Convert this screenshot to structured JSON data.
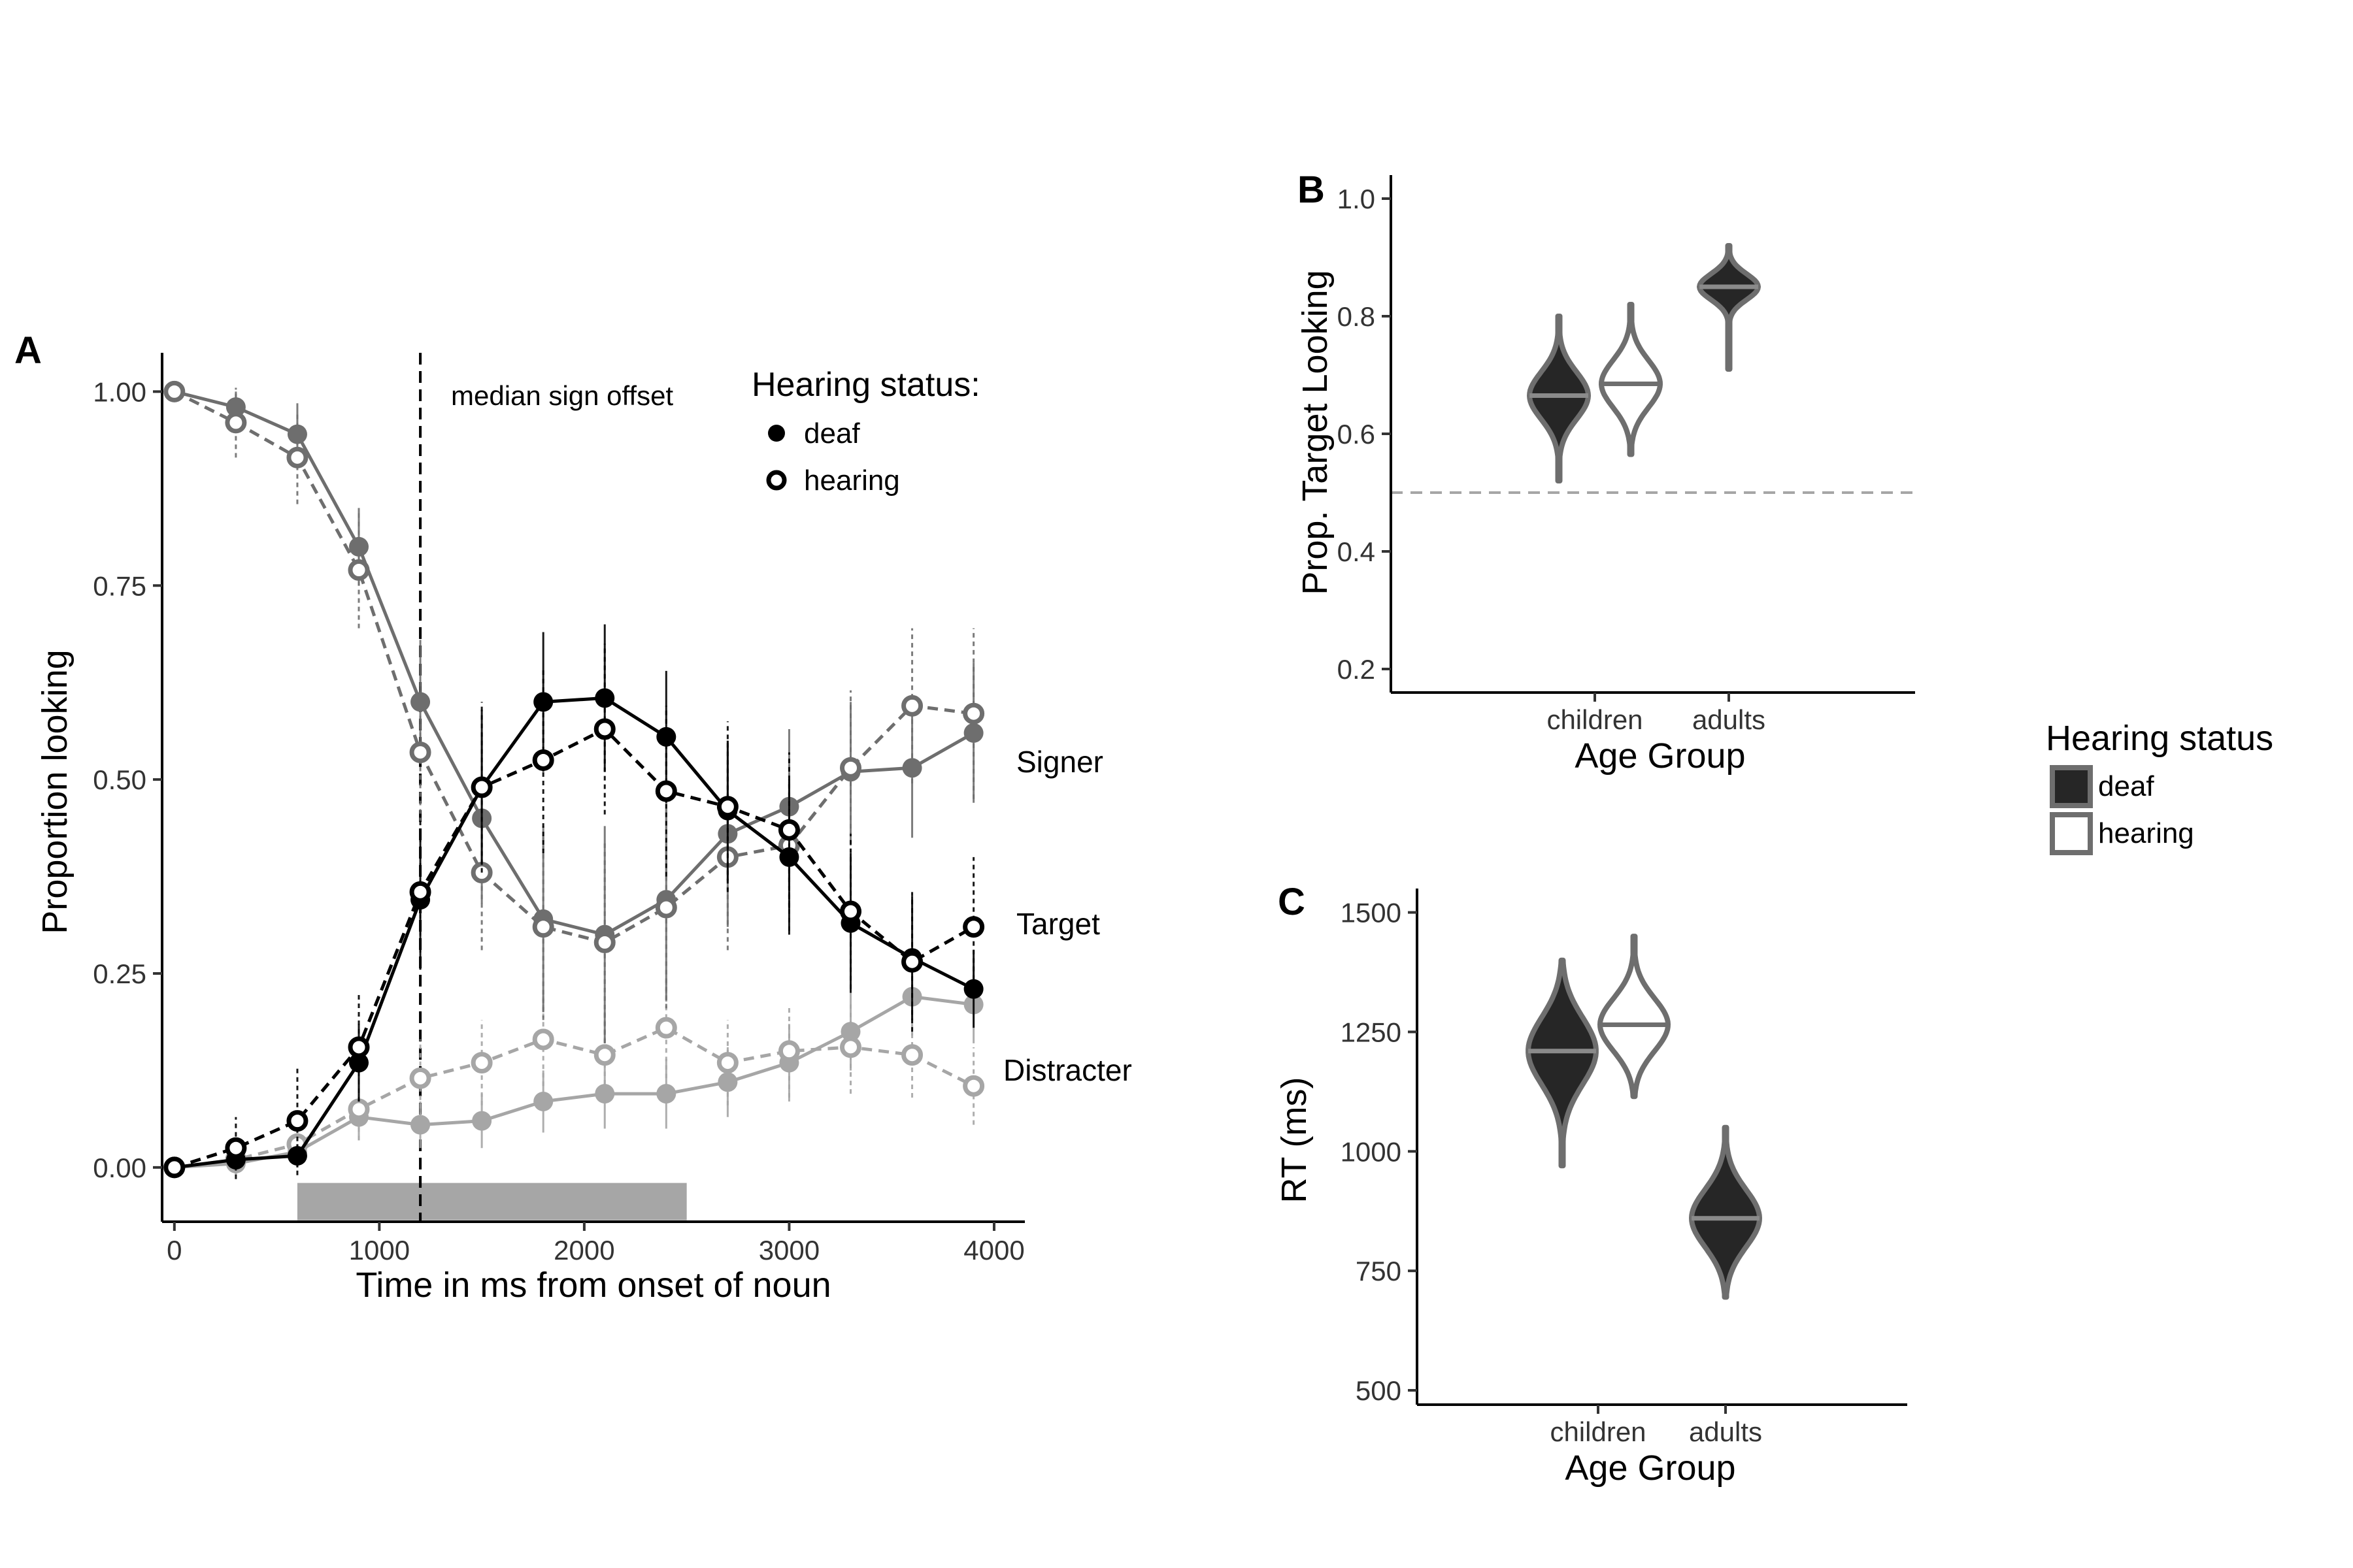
{
  "panels": {
    "a": {
      "letter": "A"
    },
    "b": {
      "letter": "B"
    },
    "c": {
      "letter": "C"
    }
  },
  "chart_data": [
    {
      "type": "line",
      "panel": "A",
      "xlabel": "Time in ms from onset of noun",
      "ylabel": "Proportion looking",
      "xlim": [
        -60,
        4150
      ],
      "ylim": [
        -0.07,
        1.05
      ],
      "xticks": [
        0,
        1000,
        2000,
        3000,
        4000
      ],
      "yticks": [
        0.0,
        0.25,
        0.5,
        0.75,
        1.0
      ],
      "ytick_labels": [
        "0.00",
        "0.25",
        "0.50",
        "0.75",
        "1.00"
      ],
      "x": [
        0,
        300,
        600,
        900,
        1200,
        1500,
        1800,
        2100,
        2400,
        2700,
        3000,
        3300,
        3600,
        3900
      ],
      "annotation": {
        "text": "median sign offset",
        "x": 1200
      },
      "shaded_window": {
        "x0": 600,
        "x1": 2500
      },
      "legend": {
        "title": "Hearing status:",
        "entries": [
          "deaf",
          "hearing"
        ],
        "position": "top-right"
      },
      "region_labels": [
        "Signer",
        "Target",
        "Distracter"
      ],
      "colors": {
        "signer": "#6e6e6e",
        "target": "#000000",
        "distracter": "#a6a6a6",
        "shade": "#a6a6a6",
        "refline": "#000000"
      },
      "series": [
        {
          "region": "Signer",
          "group": "deaf",
          "values": [
            1.0,
            0.98,
            0.945,
            0.8,
            0.6,
            0.45,
            0.32,
            0.3,
            0.345,
            0.43,
            0.465,
            0.51,
            0.515,
            0.56
          ],
          "errors": [
            0.01,
            0.02,
            0.04,
            0.05,
            0.08,
            0.11,
            0.12,
            0.14,
            0.13,
            0.12,
            0.1,
            0.09,
            0.09,
            0.09
          ]
        },
        {
          "region": "Signer",
          "group": "hearing",
          "values": [
            1.0,
            0.96,
            0.915,
            0.77,
            0.535,
            0.38,
            0.31,
            0.29,
            0.335,
            0.4,
            0.415,
            0.515,
            0.595,
            0.585
          ],
          "errors": [
            0.01,
            0.045,
            0.06,
            0.075,
            0.09,
            0.1,
            0.12,
            0.13,
            0.13,
            0.12,
            0.11,
            0.1,
            0.1,
            0.11
          ]
        },
        {
          "region": "Target",
          "group": "deaf",
          "values": [
            0.0,
            0.01,
            0.015,
            0.135,
            0.345,
            0.49,
            0.6,
            0.605,
            0.555,
            0.46,
            0.4,
            0.315,
            0.27,
            0.23
          ],
          "errors": [
            0.005,
            0.01,
            0.015,
            0.05,
            0.09,
            0.1,
            0.09,
            0.095,
            0.085,
            0.09,
            0.1,
            0.09,
            0.08,
            0.05
          ]
        },
        {
          "region": "Target",
          "group": "hearing",
          "values": [
            0.0,
            0.025,
            0.06,
            0.155,
            0.355,
            0.49,
            0.525,
            0.565,
            0.485,
            0.465,
            0.435,
            0.33,
            0.265,
            0.31
          ],
          "errors": [
            0.005,
            0.04,
            0.07,
            0.07,
            0.1,
            0.11,
            0.12,
            0.11,
            0.11,
            0.11,
            0.1,
            0.1,
            0.09,
            0.09
          ]
        },
        {
          "region": "Distracter",
          "group": "deaf",
          "values": [
            0.0,
            0.005,
            0.02,
            0.065,
            0.055,
            0.06,
            0.085,
            0.095,
            0.095,
            0.11,
            0.135,
            0.175,
            0.22,
            0.21
          ],
          "errors": [
            0.005,
            0.01,
            0.015,
            0.03,
            0.03,
            0.035,
            0.04,
            0.045,
            0.045,
            0.045,
            0.05,
            0.05,
            0.05,
            0.05
          ]
        },
        {
          "region": "Distracter",
          "group": "hearing",
          "values": [
            0.0,
            0.01,
            0.03,
            0.075,
            0.115,
            0.135,
            0.165,
            0.145,
            0.18,
            0.135,
            0.15,
            0.155,
            0.145,
            0.105
          ],
          "errors": [
            0.005,
            0.02,
            0.03,
            0.04,
            0.05,
            0.055,
            0.06,
            0.06,
            0.065,
            0.055,
            0.06,
            0.06,
            0.055,
            0.05
          ]
        }
      ]
    },
    {
      "type": "violin",
      "panel": "B",
      "xlabel": "Age Group",
      "ylabel": "Prop. Target Looking",
      "categories": [
        "children",
        "adults"
      ],
      "ylim": [
        0.16,
        1.04
      ],
      "yticks": [
        0.2,
        0.4,
        0.6,
        0.8,
        1.0
      ],
      "ytick_labels": [
        "0.2",
        "0.4",
        "0.6",
        "0.8",
        "1.0"
      ],
      "reference_line": 0.5,
      "violins": [
        {
          "category": "children",
          "group": "deaf",
          "median": 0.665,
          "min": 0.52,
          "max": 0.8,
          "sd": 0.04
        },
        {
          "category": "children",
          "group": "hearing",
          "median": 0.685,
          "min": 0.565,
          "max": 0.82,
          "sd": 0.04
        },
        {
          "category": "adults",
          "group": "deaf",
          "median": 0.85,
          "min": 0.71,
          "max": 0.92,
          "sd": 0.022
        }
      ]
    },
    {
      "type": "violin",
      "panel": "C",
      "xlabel": "Age Group",
      "ylabel": "RT (ms)",
      "categories": [
        "children",
        "adults"
      ],
      "ylim": [
        470,
        1550
      ],
      "yticks": [
        500,
        750,
        1000,
        1250,
        1500
      ],
      "ytick_labels": [
        "500",
        "750",
        "1000",
        "1250",
        "1500"
      ],
      "violins": [
        {
          "category": "children",
          "group": "deaf",
          "median": 1210,
          "min": 970,
          "max": 1400,
          "sd": 70
        },
        {
          "category": "children",
          "group": "hearing",
          "median": 1265,
          "min": 1115,
          "max": 1450,
          "sd": 55
        },
        {
          "category": "adults",
          "group": "deaf",
          "median": 860,
          "min": 695,
          "max": 1050,
          "sd": 60
        }
      ]
    }
  ],
  "shared_legend": {
    "title": "Hearing status",
    "entries": [
      {
        "label": "deaf",
        "fill": "#262626",
        "stroke": "#6e6e6e"
      },
      {
        "label": "hearing",
        "fill": "#ffffff",
        "stroke": "#6e6e6e"
      }
    ]
  }
}
